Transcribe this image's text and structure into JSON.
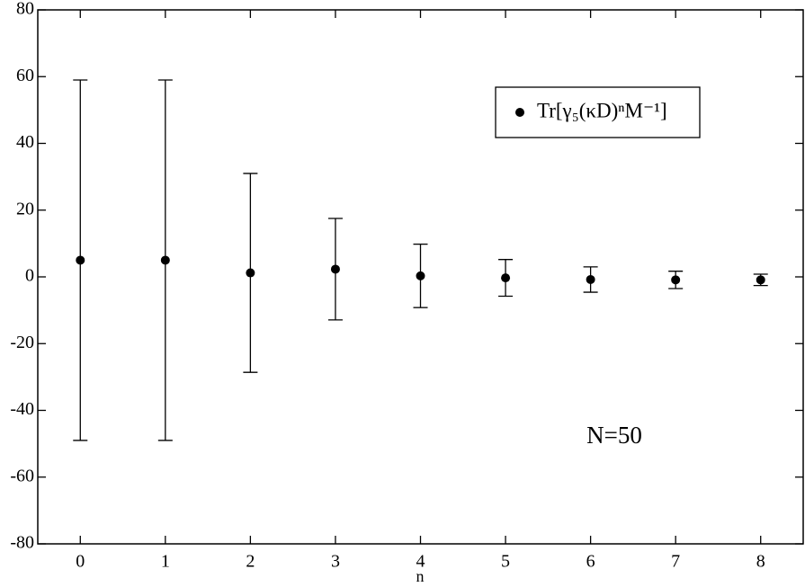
{
  "chart_data": {
    "type": "scatter",
    "x_label": "n",
    "x": [
      0,
      1,
      2,
      3,
      4,
      5,
      6,
      7,
      8
    ],
    "series": [
      {
        "name": "Tr[γ₅(κD)ⁿM⁻¹]",
        "color": "#000000",
        "values": [
          5,
          5,
          1.2,
          2.3,
          0.3,
          -0.3,
          -0.8,
          -0.9,
          -0.9
        ],
        "errors": [
          54,
          54,
          29.8,
          15.2,
          9.5,
          5.5,
          3.8,
          2.6,
          1.7
        ]
      }
    ],
    "xlim": [
      -0.5,
      8.5
    ],
    "xticks": [
      0,
      1,
      2,
      3,
      4,
      5,
      6,
      7,
      8
    ],
    "ylim": [
      -80,
      80
    ],
    "yticks": [
      -80,
      -60,
      -40,
      -20,
      0,
      20,
      40,
      60,
      80
    ],
    "annotation": "N=50",
    "legend": "upper right",
    "grid": false
  }
}
